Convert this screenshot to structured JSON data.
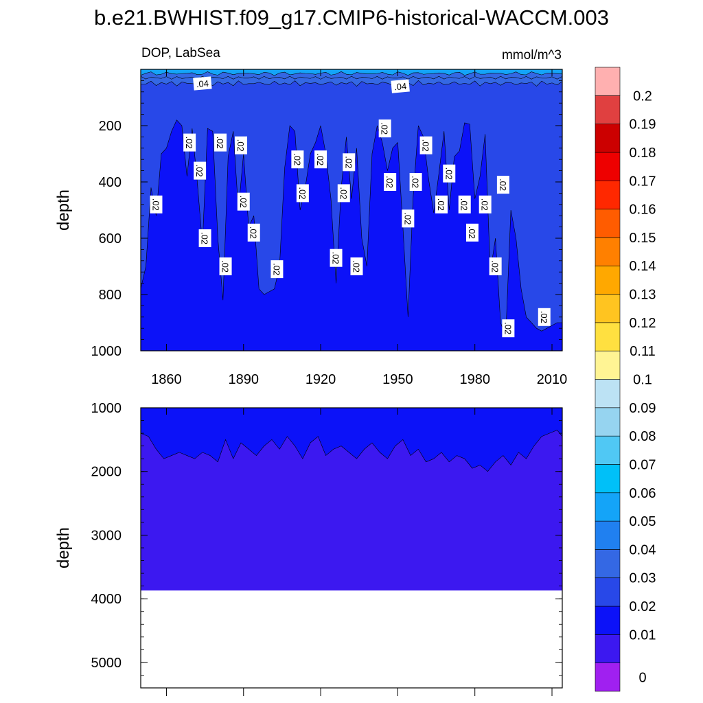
{
  "figure": {
    "title": "b.e21.BWHIST.f09_g17.CMIP6-historical-WACCM.003",
    "variable": "DOP, LabSea",
    "units": "mmol/m^3"
  },
  "chart_data": [
    {
      "type": "contour",
      "panel": "upper",
      "variable": "DOP",
      "region": "LabSea",
      "units": "mmol/m^3",
      "ylabel": "depth",
      "xlabel": "",
      "xlim": [
        1850,
        2014
      ],
      "ylim": [
        1000,
        0
      ],
      "x_ticks": [
        1860,
        1890,
        1920,
        1950,
        1980,
        2010
      ],
      "y_ticks": [
        200,
        400,
        600,
        800,
        1000
      ],
      "contour_labels": [
        ".04",
        ".04",
        ".02",
        ".02",
        ".02",
        ".02",
        ".02",
        ".02",
        ".02",
        ".02",
        ".02",
        ".02",
        ".02",
        ".02",
        ".02",
        ".02",
        ".02",
        ".02",
        ".02",
        ".02",
        ".02",
        ".02",
        ".02",
        ".02",
        ".02",
        ".02",
        ".02",
        ".02",
        ".02",
        ".02",
        ".02",
        ".02",
        ".02"
      ],
      "level_boundaries": {
        "0.04_depth": 15,
        "0.03_depth": 50,
        "0.02_depth_typical": 110
      },
      "deep_layer_0.01_boundary_years": [
        1850,
        1852,
        1854,
        1856,
        1858,
        1860,
        1862,
        1864,
        1866,
        1868,
        1870,
        1872,
        1874,
        1876,
        1878,
        1880,
        1882,
        1884,
        1886,
        1888,
        1890,
        1892,
        1894,
        1896,
        1898,
        1900,
        1902,
        1904,
        1906,
        1908,
        1910,
        1912,
        1914,
        1916,
        1918,
        1920,
        1922,
        1924,
        1926,
        1928,
        1930,
        1932,
        1934,
        1936,
        1938,
        1940,
        1942,
        1944,
        1946,
        1948,
        1950,
        1952,
        1954,
        1956,
        1958,
        1960,
        1962,
        1964,
        1966,
        1968,
        1970,
        1972,
        1974,
        1976,
        1978,
        1980,
        1982,
        1984,
        1986,
        1988,
        1990,
        1992,
        1994,
        1996,
        1998,
        2000,
        2002,
        2004,
        2006,
        2008,
        2010,
        2012,
        2014
      ],
      "deep_layer_0.01_boundary_depths": [
        780,
        700,
        420,
        520,
        300,
        280,
        220,
        180,
        200,
        380,
        210,
        400,
        620,
        210,
        220,
        600,
        820,
        310,
        220,
        500,
        300,
        560,
        520,
        780,
        800,
        790,
        780,
        700,
        350,
        200,
        220,
        500,
        420,
        300,
        260,
        200,
        300,
        460,
        760,
        420,
        240,
        460,
        280,
        600,
        700,
        300,
        200,
        260,
        360,
        280,
        260,
        560,
        880,
        450,
        200,
        240,
        390,
        510,
        370,
        220,
        500,
        310,
        290,
        190,
        195,
        460,
        380,
        230,
        720,
        600,
        900,
        950,
        500,
        600,
        780,
        880,
        900,
        920,
        930,
        920,
        910,
        900,
        900
      ]
    },
    {
      "type": "contour",
      "panel": "lower",
      "ylabel": "depth",
      "xlim": [
        1850,
        2014
      ],
      "ylim": [
        5400,
        1000
      ],
      "y_ticks": [
        1000,
        2000,
        3000,
        4000,
        5000
      ],
      "ocean_bottom_depth": 3870,
      "boundary_0.01_years": [
        1850,
        1853,
        1856,
        1859,
        1862,
        1865,
        1868,
        1871,
        1874,
        1877,
        1880,
        1883,
        1886,
        1889,
        1892,
        1895,
        1898,
        1901,
        1904,
        1907,
        1910,
        1913,
        1916,
        1919,
        1922,
        1925,
        1928,
        1931,
        1934,
        1937,
        1940,
        1943,
        1946,
        1949,
        1952,
        1955,
        1958,
        1961,
        1964,
        1967,
        1970,
        1973,
        1976,
        1979,
        1982,
        1985,
        1988,
        1991,
        1994,
        1997,
        2000,
        2003,
        2006,
        2009,
        2012,
        2014
      ],
      "boundary_0.01_depths": [
        1400,
        1450,
        1650,
        1800,
        1750,
        1700,
        1750,
        1800,
        1700,
        1750,
        1850,
        1500,
        1800,
        1550,
        1650,
        1750,
        1600,
        1500,
        1650,
        1450,
        1600,
        1800,
        1550,
        1450,
        1750,
        1650,
        1600,
        1700,
        1800,
        1650,
        1550,
        1700,
        1800,
        1600,
        1500,
        1750,
        1650,
        1850,
        1800,
        1700,
        1850,
        1750,
        1800,
        1950,
        1900,
        2000,
        1850,
        1750,
        1900,
        1700,
        1800,
        1600,
        1450,
        1400,
        1350,
        1450
      ]
    }
  ],
  "colorbar": {
    "colors": [
      "#a020f0",
      "#3c18f0",
      "#0c12f8",
      "#2848e8",
      "#3468e4",
      "#2080f0",
      "#14a4f8",
      "#00c0f8",
      "#50c8f4",
      "#96d4f0",
      "#bce2f4",
      "#fff494",
      "#ffe040",
      "#ffc420",
      "#ffa800",
      "#ff8000",
      "#ff5c00",
      "#ff2800",
      "#ee0000",
      "#cc0000",
      "#e04040",
      "#ffb0b0"
    ],
    "labels": [
      "0",
      "0.01",
      "0.02",
      "0.03",
      "0.04",
      "0.05",
      "0.06",
      "0.07",
      "0.08",
      "0.09",
      "0.1",
      "0.11",
      "0.12",
      "0.13",
      "0.14",
      "0.15",
      "0.16",
      "0.17",
      "0.18",
      "0.19",
      "0.2"
    ]
  },
  "colors": {
    "level_0_01": "#0c12f8",
    "level_0_02": "#2848e8",
    "level_0_03": "#3468e4",
    "level_0_04": "#14a4f8",
    "level_0": "#3c18f0",
    "deep": "#3c18f0"
  }
}
